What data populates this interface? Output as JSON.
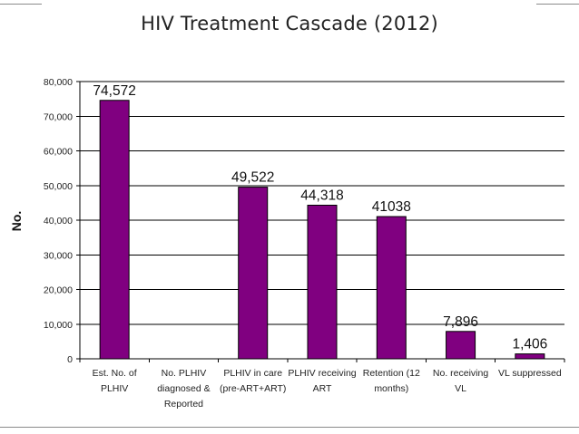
{
  "chart_data": {
    "type": "bar",
    "title": "HIV Treatment Cascade (2012)",
    "xlabel": "",
    "ylabel": "No.",
    "ylim": [
      0,
      80000
    ],
    "ytick_step": 10000,
    "ytick_labels": [
      "0",
      "10,000",
      "20,000",
      "30,000",
      "40,000",
      "50,000",
      "60,000",
      "70,000",
      "80,000"
    ],
    "categories": [
      [
        "Est. No. of",
        "PLHIV"
      ],
      [
        "No. PLHIV",
        "diagnosed &",
        "Reported"
      ],
      [
        "PLHIV in care",
        "(pre-ART+ART)"
      ],
      [
        "PLHIV receiving",
        "ART"
      ],
      [
        "Retention (12",
        "months)"
      ],
      [
        "No. receiving",
        "VL"
      ],
      [
        "VL suppressed"
      ]
    ],
    "values": [
      74572,
      null,
      49522,
      44318,
      41038,
      7896,
      1406
    ],
    "data_labels": [
      "74,572",
      "",
      "49,522",
      "44,318",
      "41038",
      "7,896",
      "1,406"
    ],
    "bar_color": "#800080",
    "grid": true
  }
}
